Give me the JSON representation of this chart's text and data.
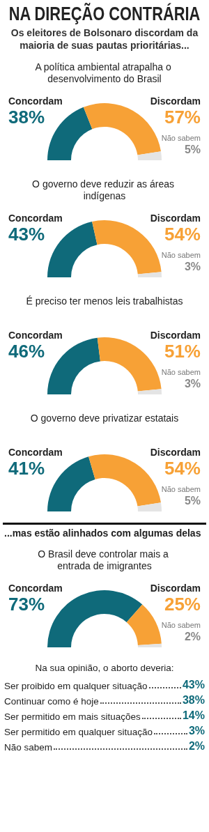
{
  "chart_data": [
    {
      "type": "other",
      "title": "NA DIREÇÃO CONTRÁRIA",
      "subtitle": "Os eleitores de Bolsonaro discordam da maioria de suas pautas prioritárias..."
    },
    {
      "type": "donut",
      "title": "A política ambiental atrapalha o desenvolvimento do Brasil",
      "categories": [
        "Concordam",
        "Discordam",
        "Não sabem"
      ],
      "values": [
        38,
        57,
        5
      ],
      "value_labels": [
        "38%",
        "57%",
        "5%"
      ],
      "colors": [
        "#0f6a7a",
        "#f7a136",
        "#e4e4e4"
      ],
      "data_labels": true
    },
    {
      "type": "donut",
      "title": "O governo deve reduzir as áreas indígenas",
      "categories": [
        "Concordam",
        "Discordam",
        "Não sabem"
      ],
      "values": [
        43,
        54,
        3
      ],
      "value_labels": [
        "43%",
        "54%",
        "3%"
      ],
      "colors": [
        "#0f6a7a",
        "#f7a136",
        "#e4e4e4"
      ],
      "data_labels": true
    },
    {
      "type": "donut",
      "title": "É preciso ter menos leis trabalhistas",
      "categories": [
        "Concordam",
        "Discordam",
        "Não sabem"
      ],
      "values": [
        46,
        51,
        3
      ],
      "value_labels": [
        "46%",
        "51%",
        "3%"
      ],
      "colors": [
        "#0f6a7a",
        "#f7a136",
        "#e4e4e4"
      ],
      "data_labels": true
    },
    {
      "type": "donut",
      "title": "O governo deve privatizar estatais",
      "categories": [
        "Concordam",
        "Discordam",
        "Não sabem"
      ],
      "values": [
        41,
        54,
        5
      ],
      "value_labels": [
        "41%",
        "54%",
        "5%"
      ],
      "colors": [
        "#0f6a7a",
        "#f7a136",
        "#e4e4e4"
      ],
      "data_labels": true
    },
    {
      "type": "other",
      "title": "...mas estão alinhados com algumas delas"
    },
    {
      "type": "donut",
      "title": "O Brasil deve controlar mais a entrada de imigrantes",
      "categories": [
        "Concordam",
        "Discordam",
        "Não sabem"
      ],
      "values": [
        73,
        25,
        2
      ],
      "value_labels": [
        "73%",
        "25%",
        "2%"
      ],
      "colors": [
        "#0f6a7a",
        "#f7a136",
        "#e4e4e4"
      ],
      "data_labels": true
    },
    {
      "type": "other",
      "title": "Na sua opinião, o aborto deveria:",
      "categories": [
        "Ser proibido em qualquer situação",
        "Continuar como é hoje",
        "Ser permitido em mais situações",
        "Ser permitido em qualquer situação",
        "Não sabem"
      ],
      "value_labels": [
        "43%",
        "38%",
        "14%",
        "3%",
        "2%"
      ],
      "colors": [
        "#0f6a7a",
        "#0f6a7a",
        "#0f6a7a",
        "#0f6a7a",
        "#0f6a7a"
      ]
    }
  ]
}
